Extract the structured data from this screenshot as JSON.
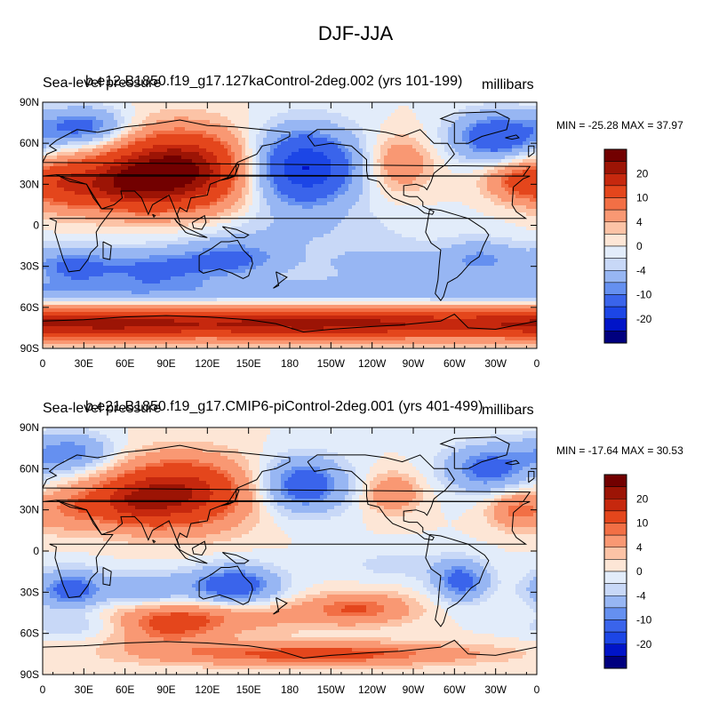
{
  "figure": {
    "title": "DJF-JJA"
  },
  "chart_data": [
    {
      "type": "heatmap",
      "variable_label": "Sea-level pressure",
      "case_label": "b.e12.B1850.f19_g17.127kaControl-2deg.002 (yrs 101-199)",
      "units": "millibars",
      "stats": "MIN = -25.28 MAX =  37.97",
      "min": -25.28,
      "max": 37.97,
      "x_ticks": [
        "0",
        "30E",
        "60E",
        "90E",
        "120E",
        "150E",
        "180",
        "150W",
        "120W",
        "90W",
        "60W",
        "30W",
        "0"
      ],
      "y_ticks": [
        "90N",
        "60N",
        "30N",
        "0",
        "30S",
        "60S",
        "90S"
      ],
      "xlim": [
        0,
        360
      ],
      "ylim": [
        -90,
        90
      ],
      "colorbar_levels": [
        -24,
        -20,
        -16,
        -10,
        -8,
        -4,
        -2,
        0,
        2,
        4,
        8,
        10,
        16,
        20,
        24
      ],
      "colorbar_labels": [
        "20",
        "10",
        "4",
        "0",
        "-4",
        "-10",
        "-20"
      ],
      "features": [
        {
          "lon": 100,
          "lat": 40,
          "value": 26,
          "sx": 35,
          "sy": 20
        },
        {
          "lon": 55,
          "lat": 30,
          "value": 14,
          "sx": 25,
          "sy": 14
        },
        {
          "lon": 15,
          "lat": 30,
          "value": 10,
          "sx": 18,
          "sy": 14
        },
        {
          "lon": 190,
          "lat": 42,
          "value": -21,
          "sx": 28,
          "sy": 20
        },
        {
          "lon": 260,
          "lat": 45,
          "value": 8,
          "sx": 16,
          "sy": 14
        },
        {
          "lon": 330,
          "lat": 65,
          "value": -15,
          "sx": 22,
          "sy": 12
        },
        {
          "lon": 30,
          "lat": 72,
          "value": -12,
          "sx": 22,
          "sy": 10
        },
        {
          "lon": 345,
          "lat": 32,
          "value": 10,
          "sx": 16,
          "sy": 10
        },
        {
          "lon": 20,
          "lat": -30,
          "value": -10,
          "sx": 22,
          "sy": 10
        },
        {
          "lon": 80,
          "lat": -32,
          "value": -10,
          "sx": 30,
          "sy": 10
        },
        {
          "lon": 140,
          "lat": -25,
          "value": -10,
          "sx": 28,
          "sy": 10
        },
        {
          "lon": 250,
          "lat": -30,
          "value": -6,
          "sx": 35,
          "sy": 10
        },
        {
          "lon": 320,
          "lat": -25,
          "value": -8,
          "sx": 20,
          "sy": 10
        },
        {
          "lon": 180,
          "lat": -5,
          "value": -3,
          "sx": 70,
          "sy": 12
        },
        {
          "lon": 90,
          "lat": -48,
          "value": -5,
          "sx": 90,
          "sy": 6
        },
        {
          "lon": 280,
          "lat": -48,
          "value": -5,
          "sx": 90,
          "sy": 6
        },
        {
          "lon": 120,
          "lat": -72,
          "value": 16,
          "sx": 110,
          "sy": 8
        },
        {
          "lon": 300,
          "lat": -72,
          "value": 14,
          "sx": 110,
          "sy": 8
        }
      ]
    },
    {
      "type": "heatmap",
      "variable_label": "Sea-level pressure",
      "case_label": "b.e21.B1850.f19_g17.CMIP6-piControl-2deg.001 (yrs 401-499)",
      "units": "millibars",
      "stats": "MIN = -17.64 MAX =  30.53",
      "min": -17.64,
      "max": 30.53,
      "x_ticks": [
        "0",
        "30E",
        "60E",
        "90E",
        "120E",
        "150E",
        "180",
        "150W",
        "120W",
        "90W",
        "60W",
        "30W",
        "0"
      ],
      "y_ticks": [
        "90N",
        "60N",
        "30N",
        "0",
        "30S",
        "60S",
        "90S"
      ],
      "xlim": [
        0,
        360
      ],
      "ylim": [
        -90,
        90
      ],
      "colorbar_levels": [
        -24,
        -20,
        -16,
        -10,
        -8,
        -4,
        -2,
        0,
        2,
        4,
        8,
        10,
        16,
        20,
        24
      ],
      "colorbar_labels": [
        "20",
        "10",
        "4",
        "0",
        "-4",
        "-10",
        "-20"
      ],
      "features": [
        {
          "lon": 100,
          "lat": 42,
          "value": 20,
          "sx": 35,
          "sy": 18
        },
        {
          "lon": 60,
          "lat": 35,
          "value": 10,
          "sx": 22,
          "sy": 12
        },
        {
          "lon": 20,
          "lat": 30,
          "value": 6,
          "sx": 15,
          "sy": 12
        },
        {
          "lon": 190,
          "lat": 48,
          "value": -14,
          "sx": 22,
          "sy": 14
        },
        {
          "lon": 255,
          "lat": 42,
          "value": 8,
          "sx": 14,
          "sy": 10
        },
        {
          "lon": 325,
          "lat": 60,
          "value": -12,
          "sx": 22,
          "sy": 12
        },
        {
          "lon": 20,
          "lat": 72,
          "value": -10,
          "sx": 22,
          "sy": 10
        },
        {
          "lon": 345,
          "lat": 30,
          "value": 9,
          "sx": 14,
          "sy": 10
        },
        {
          "lon": 20,
          "lat": -28,
          "value": -12,
          "sx": 18,
          "sy": 10
        },
        {
          "lon": 80,
          "lat": -30,
          "value": -8,
          "sx": 25,
          "sy": 10
        },
        {
          "lon": 140,
          "lat": -25,
          "value": -14,
          "sx": 22,
          "sy": 10
        },
        {
          "lon": 305,
          "lat": -22,
          "value": -12,
          "sx": 14,
          "sy": 10
        },
        {
          "lon": 260,
          "lat": -10,
          "value": -3,
          "sx": 30,
          "sy": 8
        },
        {
          "lon": 90,
          "lat": -52,
          "value": 12,
          "sx": 30,
          "sy": 12
        },
        {
          "lon": 230,
          "lat": -42,
          "value": 10,
          "sx": 28,
          "sy": 8
        },
        {
          "lon": 150,
          "lat": -48,
          "value": 5,
          "sx": 40,
          "sy": 8
        },
        {
          "lon": 200,
          "lat": -75,
          "value": 12,
          "sx": 80,
          "sy": 6
        },
        {
          "lon": 30,
          "lat": -55,
          "value": -4,
          "sx": 30,
          "sy": 6
        }
      ]
    }
  ],
  "colors": {
    "palette": [
      "#00007f",
      "#0014c8",
      "#1c46e6",
      "#3a64eb",
      "#6590f0",
      "#97b6f3",
      "#c8d8f7",
      "#e2ecfa",
      "#fde6d6",
      "#fcc3a6",
      "#f99873",
      "#f26f45",
      "#e4461c",
      "#c6280e",
      "#9c1405",
      "#720000"
    ],
    "coastline": "#000000"
  }
}
